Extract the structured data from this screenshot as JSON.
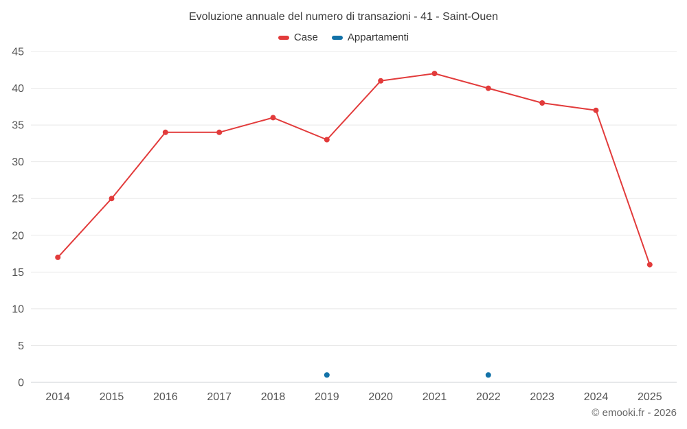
{
  "chart": {
    "title": "Evoluzione annuale del numero di transazioni - 41 - Saint-Ouen",
    "footer": "© emooki.fr - 2026"
  },
  "chart_data": {
    "type": "line",
    "title": "Evoluzione annuale del numero di transazioni - 41 - Saint-Ouen",
    "categories": [
      "2014",
      "2015",
      "2016",
      "2017",
      "2018",
      "2019",
      "2020",
      "2021",
      "2022",
      "2023",
      "2024",
      "2025"
    ],
    "series": [
      {
        "name": "Case",
        "color": "#e23b3b",
        "values": [
          17,
          25,
          34,
          34,
          36,
          33,
          41,
          42,
          40,
          38,
          37,
          16
        ]
      },
      {
        "name": "Appartamenti",
        "color": "#1272a8",
        "values": [
          null,
          null,
          null,
          null,
          null,
          1,
          null,
          null,
          1,
          null,
          null,
          null
        ]
      }
    ],
    "xlabel": "",
    "ylabel": "",
    "ylim": [
      0,
      45
    ],
    "ytick_step": 5,
    "grid": true,
    "legend_position": "top",
    "grid_color": "#e8e8e8",
    "axis_line_color": "#ccd0d4"
  }
}
